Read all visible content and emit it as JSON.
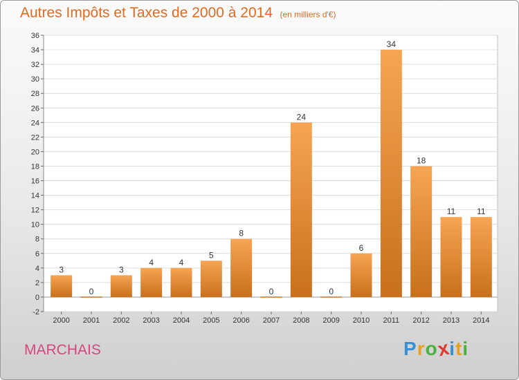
{
  "title": "Autres Impôts et Taxes de 2000 à 2014",
  "subtitle": "(en milliers d'€)",
  "commune": "MARCHAIS",
  "logo": {
    "text": "Proxiti",
    "letter_colors": [
      "#3a8fd0",
      "#e8a020",
      "#4cae3f",
      "#e03a2f",
      "#3a8fd0",
      "#e8a020",
      "#4cae3f"
    ]
  },
  "colors": {
    "bar_light": "#f6a553",
    "bar_dark": "#c8701c",
    "title": "#e2691e",
    "commune": "#d6457f"
  },
  "chart_data": {
    "type": "bar",
    "categories": [
      "2000",
      "2001",
      "2002",
      "2003",
      "2004",
      "2005",
      "2006",
      "2007",
      "2008",
      "2009",
      "2010",
      "2011",
      "2012",
      "2013",
      "2014"
    ],
    "values": [
      3,
      0,
      3,
      4,
      4,
      5,
      8,
      0,
      24,
      0,
      6,
      34,
      18,
      11,
      11
    ],
    "data_labels": [
      "3",
      "0",
      "3",
      "4",
      "4",
      "5",
      "8",
      "0",
      "24",
      "0",
      "6",
      "34",
      "18",
      "11",
      "11"
    ],
    "y_ticks": [
      "-2",
      "0",
      "2",
      "4",
      "6",
      "8",
      "10",
      "12",
      "14",
      "16",
      "18",
      "20",
      "22",
      "24",
      "26",
      "28",
      "30",
      "32",
      "34",
      "36"
    ],
    "ylim": [
      -2,
      36
    ],
    "grid": true,
    "xlabel": "",
    "ylabel": ""
  }
}
